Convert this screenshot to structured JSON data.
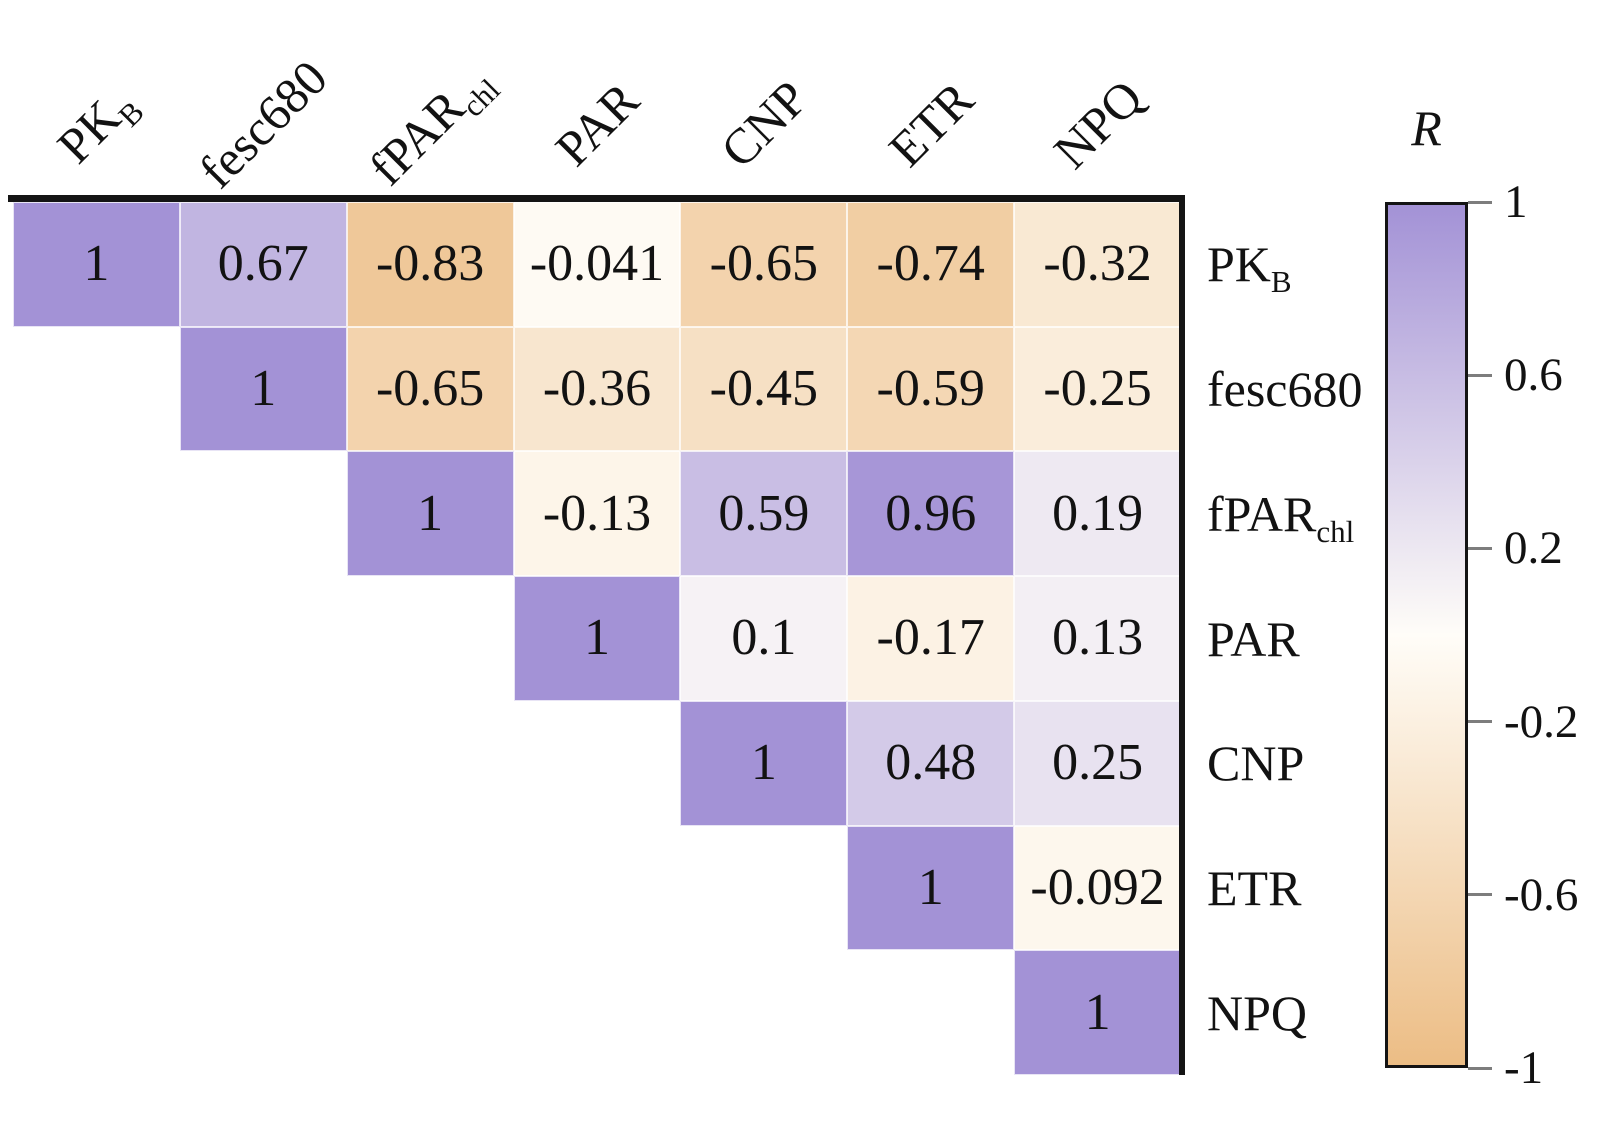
{
  "chart_data": {
    "type": "heatmap",
    "subtype": "upper-triangular correlation matrix",
    "title": "",
    "variables": [
      "PK_B",
      "fesc680",
      "fPAR_chl",
      "PAR",
      "CNP",
      "ETR",
      "NPQ"
    ],
    "variable_labels": [
      {
        "base": "PK",
        "sub": "B"
      },
      {
        "base": "fesc680",
        "sub": ""
      },
      {
        "base": "fPAR",
        "sub": "chl"
      },
      {
        "base": "PAR",
        "sub": ""
      },
      {
        "base": "CNP",
        "sub": ""
      },
      {
        "base": "ETR",
        "sub": ""
      },
      {
        "base": "NPQ",
        "sub": ""
      }
    ],
    "values": [
      [
        1,
        0.67,
        -0.83,
        -0.041,
        -0.65,
        -0.74,
        -0.32
      ],
      [
        null,
        1,
        -0.65,
        -0.36,
        -0.45,
        -0.59,
        -0.25
      ],
      [
        null,
        null,
        1,
        -0.13,
        0.59,
        0.96,
        0.19
      ],
      [
        null,
        null,
        null,
        1,
        0.1,
        -0.17,
        0.13
      ],
      [
        null,
        null,
        null,
        null,
        1,
        0.48,
        0.25
      ],
      [
        null,
        null,
        null,
        null,
        null,
        1,
        -0.092
      ],
      [
        null,
        null,
        null,
        null,
        null,
        null,
        1
      ]
    ],
    "colorbar": {
      "title": "R",
      "min": -1,
      "max": 1,
      "tick_values": [
        1,
        0.6,
        0.2,
        -0.2,
        -0.6,
        -1
      ],
      "tick_labels": [
        "1",
        "0.6",
        "0.2",
        "-0.2",
        "-0.6",
        "-1"
      ],
      "colors": {
        "positive_end": "#a392d6",
        "zero": "#fffdf8",
        "negative_end": "#ecbd85"
      }
    }
  }
}
